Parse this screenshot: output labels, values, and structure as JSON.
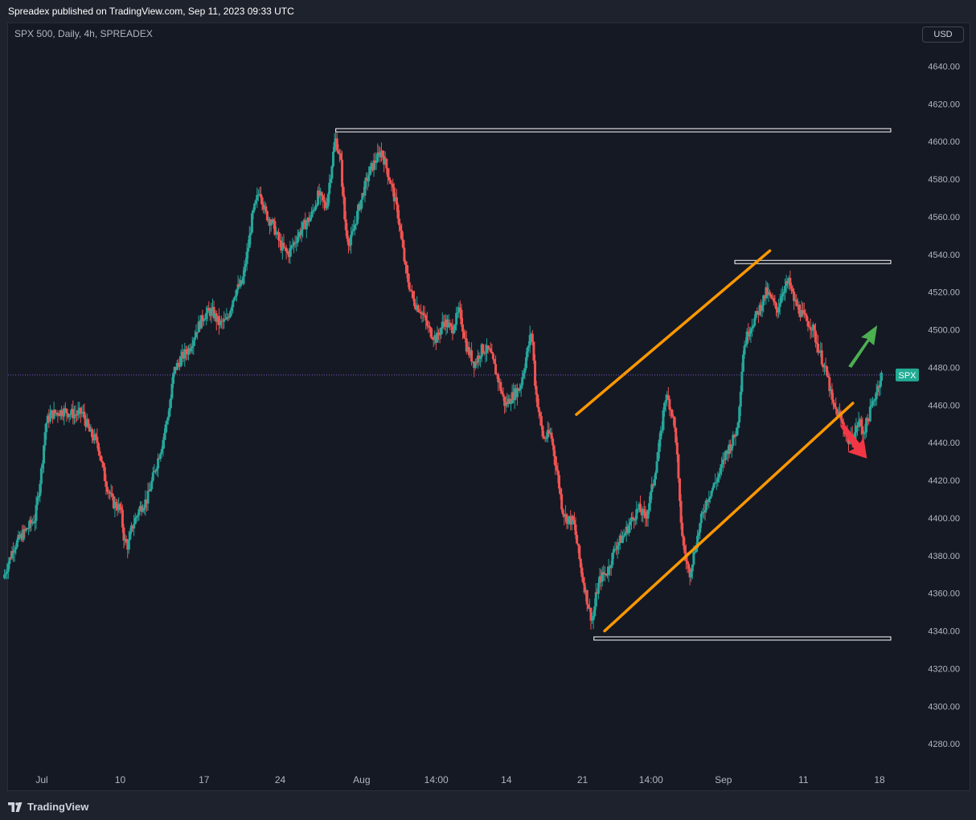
{
  "header": {
    "published": "Spreadex published on TradingView.com, Sep 11, 2023 09:33 UTC"
  },
  "symbol_info": "SPX 500, Daily, 4h, SPREADEX",
  "currency": "USD",
  "footer": {
    "brand": "TradingView"
  },
  "colors": {
    "up": "#26a69a",
    "down": "#ef5350",
    "trendline": "#ff9800",
    "level": "#ffffff",
    "price_badge": "#22ab94",
    "arrow_up": "#4caf50",
    "arrow_down": "#f23645"
  },
  "chart_data": {
    "type": "candlestick",
    "symbol_label": "SPX",
    "last_price": 4476,
    "ylim": [
      4265,
      4655
    ],
    "y_ticks": [
      4640,
      4620,
      4600,
      4580,
      4560,
      4540,
      4520,
      4500,
      4480,
      4460,
      4440,
      4420,
      4400,
      4380,
      4360,
      4340,
      4320,
      4300,
      4280
    ],
    "x_ticks": [
      {
        "label": "Jul",
        "t": 1.0
      },
      {
        "label": "10",
        "t": 11.3
      },
      {
        "label": "17",
        "t": 22.3
      },
      {
        "label": "24",
        "t": 32.3
      },
      {
        "label": "Aug",
        "t": 43.0
      },
      {
        "label": "14:00",
        "t": 52.8
      },
      {
        "label": "14",
        "t": 62.0
      },
      {
        "label": "21",
        "t": 72.0
      },
      {
        "label": "14:00",
        "t": 81.0
      },
      {
        "label": "Sep",
        "t": 90.5
      },
      {
        "label": "11",
        "t": 101.0
      },
      {
        "label": "18",
        "t": 111.0
      }
    ],
    "xlim": [
      -3.9,
      115.0
    ],
    "levels": [
      {
        "price": 4606,
        "t_start": 39.6
      },
      {
        "price": 4536,
        "t_start": 92.0
      },
      {
        "price": 4336,
        "t_start": 73.5
      }
    ],
    "trendlines": [
      {
        "t1": 71.2,
        "p1": 4455,
        "t2": 96.6,
        "p2": 4542
      },
      {
        "t1": 74.9,
        "p1": 4340,
        "t2": 107.5,
        "p2": 4461
      }
    ],
    "signals": [
      {
        "direction": "up",
        "t": 108.8,
        "p": 4490
      },
      {
        "direction": "down",
        "t": 108.5,
        "p": 4444
      }
    ],
    "path": [
      {
        "t": -3.9,
        "p": 4368
      },
      {
        "t": -2.5,
        "p": 4385
      },
      {
        "t": -1.0,
        "p": 4393
      },
      {
        "t": 0.3,
        "p": 4400
      },
      {
        "t": 1.1,
        "p": 4425
      },
      {
        "t": 1.7,
        "p": 4450
      },
      {
        "t": 2.3,
        "p": 4455
      },
      {
        "t": 4.0,
        "p": 4457
      },
      {
        "t": 5.5,
        "p": 4455
      },
      {
        "t": 6.5,
        "p": 4456
      },
      {
        "t": 7.5,
        "p": 4445
      },
      {
        "t": 8.5,
        "p": 4440
      },
      {
        "t": 9.5,
        "p": 4420
      },
      {
        "t": 10.5,
        "p": 4408
      },
      {
        "t": 11.5,
        "p": 4405
      },
      {
        "t": 12.0,
        "p": 4388
      },
      {
        "t": 12.5,
        "p": 4385
      },
      {
        "t": 13.0,
        "p": 4395
      },
      {
        "t": 14.0,
        "p": 4405
      },
      {
        "t": 15.0,
        "p": 4410
      },
      {
        "t": 16.0,
        "p": 4425
      },
      {
        "t": 17.0,
        "p": 4440
      },
      {
        "t": 18.0,
        "p": 4460
      },
      {
        "t": 18.5,
        "p": 4478
      },
      {
        "t": 19.5,
        "p": 4485
      },
      {
        "t": 20.5,
        "p": 4490
      },
      {
        "t": 21.5,
        "p": 4500
      },
      {
        "t": 22.5,
        "p": 4508
      },
      {
        "t": 23.5,
        "p": 4510
      },
      {
        "t": 24.5,
        "p": 4503
      },
      {
        "t": 25.5,
        "p": 4505
      },
      {
        "t": 26.5,
        "p": 4520
      },
      {
        "t": 27.5,
        "p": 4525
      },
      {
        "t": 28.3,
        "p": 4545
      },
      {
        "t": 28.8,
        "p": 4560
      },
      {
        "t": 29.8,
        "p": 4575
      },
      {
        "t": 30.5,
        "p": 4562
      },
      {
        "t": 31.5,
        "p": 4556
      },
      {
        "t": 32.5,
        "p": 4545
      },
      {
        "t": 33.5,
        "p": 4540
      },
      {
        "t": 34.5,
        "p": 4548
      },
      {
        "t": 35.5,
        "p": 4555
      },
      {
        "t": 36.5,
        "p": 4560
      },
      {
        "t": 37.5,
        "p": 4572
      },
      {
        "t": 38.5,
        "p": 4565
      },
      {
        "t": 39.0,
        "p": 4580
      },
      {
        "t": 39.7,
        "p": 4602
      },
      {
        "t": 40.4,
        "p": 4590
      },
      {
        "t": 41.0,
        "p": 4555
      },
      {
        "t": 41.6,
        "p": 4545
      },
      {
        "t": 42.5,
        "p": 4560
      },
      {
        "t": 43.5,
        "p": 4575
      },
      {
        "t": 44.3,
        "p": 4585
      },
      {
        "t": 45.0,
        "p": 4590
      },
      {
        "t": 45.8,
        "p": 4595
      },
      {
        "t": 46.5,
        "p": 4585
      },
      {
        "t": 47.2,
        "p": 4575
      },
      {
        "t": 48.0,
        "p": 4560
      },
      {
        "t": 48.5,
        "p": 4545
      },
      {
        "t": 49.0,
        "p": 4530
      },
      {
        "t": 50.0,
        "p": 4515
      },
      {
        "t": 51.0,
        "p": 4510
      },
      {
        "t": 52.0,
        "p": 4500
      },
      {
        "t": 53.0,
        "p": 4495
      },
      {
        "t": 54.0,
        "p": 4505
      },
      {
        "t": 55.0,
        "p": 4500
      },
      {
        "t": 56.0,
        "p": 4510
      },
      {
        "t": 57.0,
        "p": 4490
      },
      {
        "t": 58.0,
        "p": 4482
      },
      {
        "t": 59.0,
        "p": 4490
      },
      {
        "t": 60.0,
        "p": 4488
      },
      {
        "t": 61.0,
        "p": 4475
      },
      {
        "t": 62.0,
        "p": 4460
      },
      {
        "t": 63.0,
        "p": 4465
      },
      {
        "t": 64.0,
        "p": 4470
      },
      {
        "t": 64.5,
        "p": 4480
      },
      {
        "t": 65.0,
        "p": 4490
      },
      {
        "t": 65.5,
        "p": 4500
      },
      {
        "t": 66.0,
        "p": 4468
      },
      {
        "t": 66.5,
        "p": 4455
      },
      {
        "t": 67.0,
        "p": 4442
      },
      {
        "t": 68.0,
        "p": 4445
      },
      {
        "t": 69.0,
        "p": 4420
      },
      {
        "t": 69.5,
        "p": 4405
      },
      {
        "t": 70.0,
        "p": 4400
      },
      {
        "t": 71.0,
        "p": 4398
      },
      {
        "t": 71.5,
        "p": 4385
      },
      {
        "t": 72.0,
        "p": 4372
      },
      {
        "t": 72.5,
        "p": 4362
      },
      {
        "t": 73.0,
        "p": 4352
      },
      {
        "t": 73.5,
        "p": 4345
      },
      {
        "t": 74.0,
        "p": 4360
      },
      {
        "t": 74.5,
        "p": 4368
      },
      {
        "t": 75.5,
        "p": 4372
      },
      {
        "t": 76.5,
        "p": 4385
      },
      {
        "t": 77.5,
        "p": 4390
      },
      {
        "t": 78.5,
        "p": 4398
      },
      {
        "t": 79.5,
        "p": 4405
      },
      {
        "t": 80.5,
        "p": 4400
      },
      {
        "t": 81.5,
        "p": 4420
      },
      {
        "t": 82.5,
        "p": 4445
      },
      {
        "t": 83.0,
        "p": 4465
      },
      {
        "t": 83.5,
        "p": 4462
      },
      {
        "t": 84.0,
        "p": 4455
      },
      {
        "t": 84.5,
        "p": 4440
      },
      {
        "t": 84.9,
        "p": 4408
      },
      {
        "t": 85.4,
        "p": 4385
      },
      {
        "t": 86.2,
        "p": 4370
      },
      {
        "t": 87.0,
        "p": 4385
      },
      {
        "t": 87.8,
        "p": 4400
      },
      {
        "t": 88.5,
        "p": 4410
      },
      {
        "t": 89.5,
        "p": 4418
      },
      {
        "t": 90.3,
        "p": 4425
      },
      {
        "t": 91.0,
        "p": 4435
      },
      {
        "t": 91.8,
        "p": 4440
      },
      {
        "t": 92.5,
        "p": 4448
      },
      {
        "t": 92.9,
        "p": 4468
      },
      {
        "t": 93.3,
        "p": 4490
      },
      {
        "t": 94.0,
        "p": 4500
      },
      {
        "t": 94.7,
        "p": 4505
      },
      {
        "t": 95.5,
        "p": 4512
      },
      {
        "t": 96.3,
        "p": 4520
      },
      {
        "t": 97.0,
        "p": 4516
      },
      {
        "t": 97.7,
        "p": 4510
      },
      {
        "t": 98.5,
        "p": 4522
      },
      {
        "t": 99.3,
        "p": 4525
      },
      {
        "t": 100.0,
        "p": 4515
      },
      {
        "t": 100.7,
        "p": 4510
      },
      {
        "t": 101.5,
        "p": 4505
      },
      {
        "t": 102.3,
        "p": 4502
      },
      {
        "t": 103.0,
        "p": 4492
      },
      {
        "t": 103.8,
        "p": 4482
      },
      {
        "t": 104.5,
        "p": 4472
      },
      {
        "t": 105.0,
        "p": 4460
      },
      {
        "t": 105.8,
        "p": 4455
      },
      {
        "t": 106.5,
        "p": 4448
      },
      {
        "t": 107.2,
        "p": 4440
      },
      {
        "t": 107.9,
        "p": 4445
      },
      {
        "t": 108.5,
        "p": 4452
      },
      {
        "t": 109.0,
        "p": 4445
      },
      {
        "t": 109.6,
        "p": 4452
      },
      {
        "t": 110.2,
        "p": 4460
      },
      {
        "t": 110.8,
        "p": 4468
      },
      {
        "t": 111.4,
        "p": 4476
      }
    ]
  }
}
